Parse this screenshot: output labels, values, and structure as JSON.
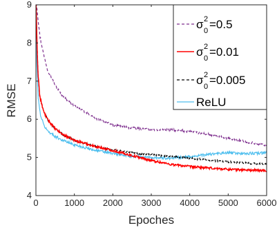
{
  "chart_data": {
    "type": "line",
    "xlabel": "Epoches",
    "ylabel": "RMSE",
    "xlim": [
      0,
      6000
    ],
    "ylim": [
      4,
      9
    ],
    "xticks": [
      0,
      1000,
      2000,
      3000,
      4000,
      5000,
      6000
    ],
    "yticks": [
      4,
      5,
      6,
      7,
      8,
      9
    ],
    "grid": false,
    "legend_position": "top-right",
    "series": [
      {
        "name": "σ₀²=0.5",
        "legend_main": "σ",
        "legend_sup": "2",
        "legend_sub": "0",
        "legend_tail": "=0.5",
        "color": "#7E2F8E",
        "dash": "dashed",
        "noise": 0.03,
        "x": [
          0,
          10,
          30,
          60,
          100,
          200,
          300,
          500,
          700,
          1000,
          1500,
          2000,
          2500,
          3000,
          3500,
          4000,
          4500,
          5000,
          5500,
          6000
        ],
        "y": [
          9.2,
          9.1,
          8.9,
          8.6,
          8.2,
          7.7,
          7.3,
          6.9,
          6.6,
          6.35,
          6.05,
          5.85,
          5.77,
          5.73,
          5.72,
          5.68,
          5.6,
          5.5,
          5.4,
          5.32
        ]
      },
      {
        "name": "σ₀²=0.01",
        "legend_main": "σ",
        "legend_sup": "2",
        "legend_sub": "0",
        "legend_tail": "=0.01",
        "color": "#FF0000",
        "dash": "solid",
        "noise": 0.03,
        "x": [
          0,
          20,
          50,
          100,
          200,
          300,
          500,
          700,
          1000,
          1500,
          2000,
          2500,
          3000,
          3500,
          4000,
          4500,
          5000,
          5500,
          6000
        ],
        "y": [
          9.2,
          8.3,
          7.3,
          6.6,
          6.2,
          6.0,
          5.75,
          5.6,
          5.45,
          5.3,
          5.18,
          5.05,
          4.92,
          4.82,
          4.76,
          4.72,
          4.69,
          4.67,
          4.65
        ]
      },
      {
        "name": "σ₀²=0.005",
        "legend_main": "σ",
        "legend_sup": "2",
        "legend_sub": "0",
        "legend_tail": "=0.005",
        "color": "#000000",
        "dash": "dashed",
        "noise": 0.025,
        "x": [
          0,
          20,
          50,
          100,
          200,
          300,
          500,
          700,
          1000,
          1500,
          2000,
          2500,
          3000,
          3500,
          4000,
          4500,
          5000,
          5500,
          6000
        ],
        "y": [
          9.2,
          8.3,
          7.3,
          6.6,
          6.2,
          6.0,
          5.75,
          5.6,
          5.45,
          5.3,
          5.2,
          5.12,
          5.07,
          5.02,
          4.98,
          4.93,
          4.88,
          4.85,
          4.82
        ]
      },
      {
        "name": "ReLU",
        "legend_main": "ReLU",
        "legend_sup": "",
        "legend_sub": "",
        "legend_tail": "",
        "color": "#4DBEEE",
        "dash": "solid",
        "noise": 0.035,
        "x": [
          0,
          20,
          50,
          100,
          200,
          300,
          500,
          700,
          1000,
          1500,
          2000,
          2500,
          3000,
          3500,
          4000,
          4500,
          5000,
          5500,
          6000
        ],
        "y": [
          9.0,
          7.6,
          6.7,
          6.2,
          5.85,
          5.7,
          5.55,
          5.45,
          5.33,
          5.2,
          5.1,
          5.03,
          5.0,
          4.98,
          5.02,
          5.08,
          5.12,
          5.1,
          5.12
        ]
      }
    ]
  }
}
